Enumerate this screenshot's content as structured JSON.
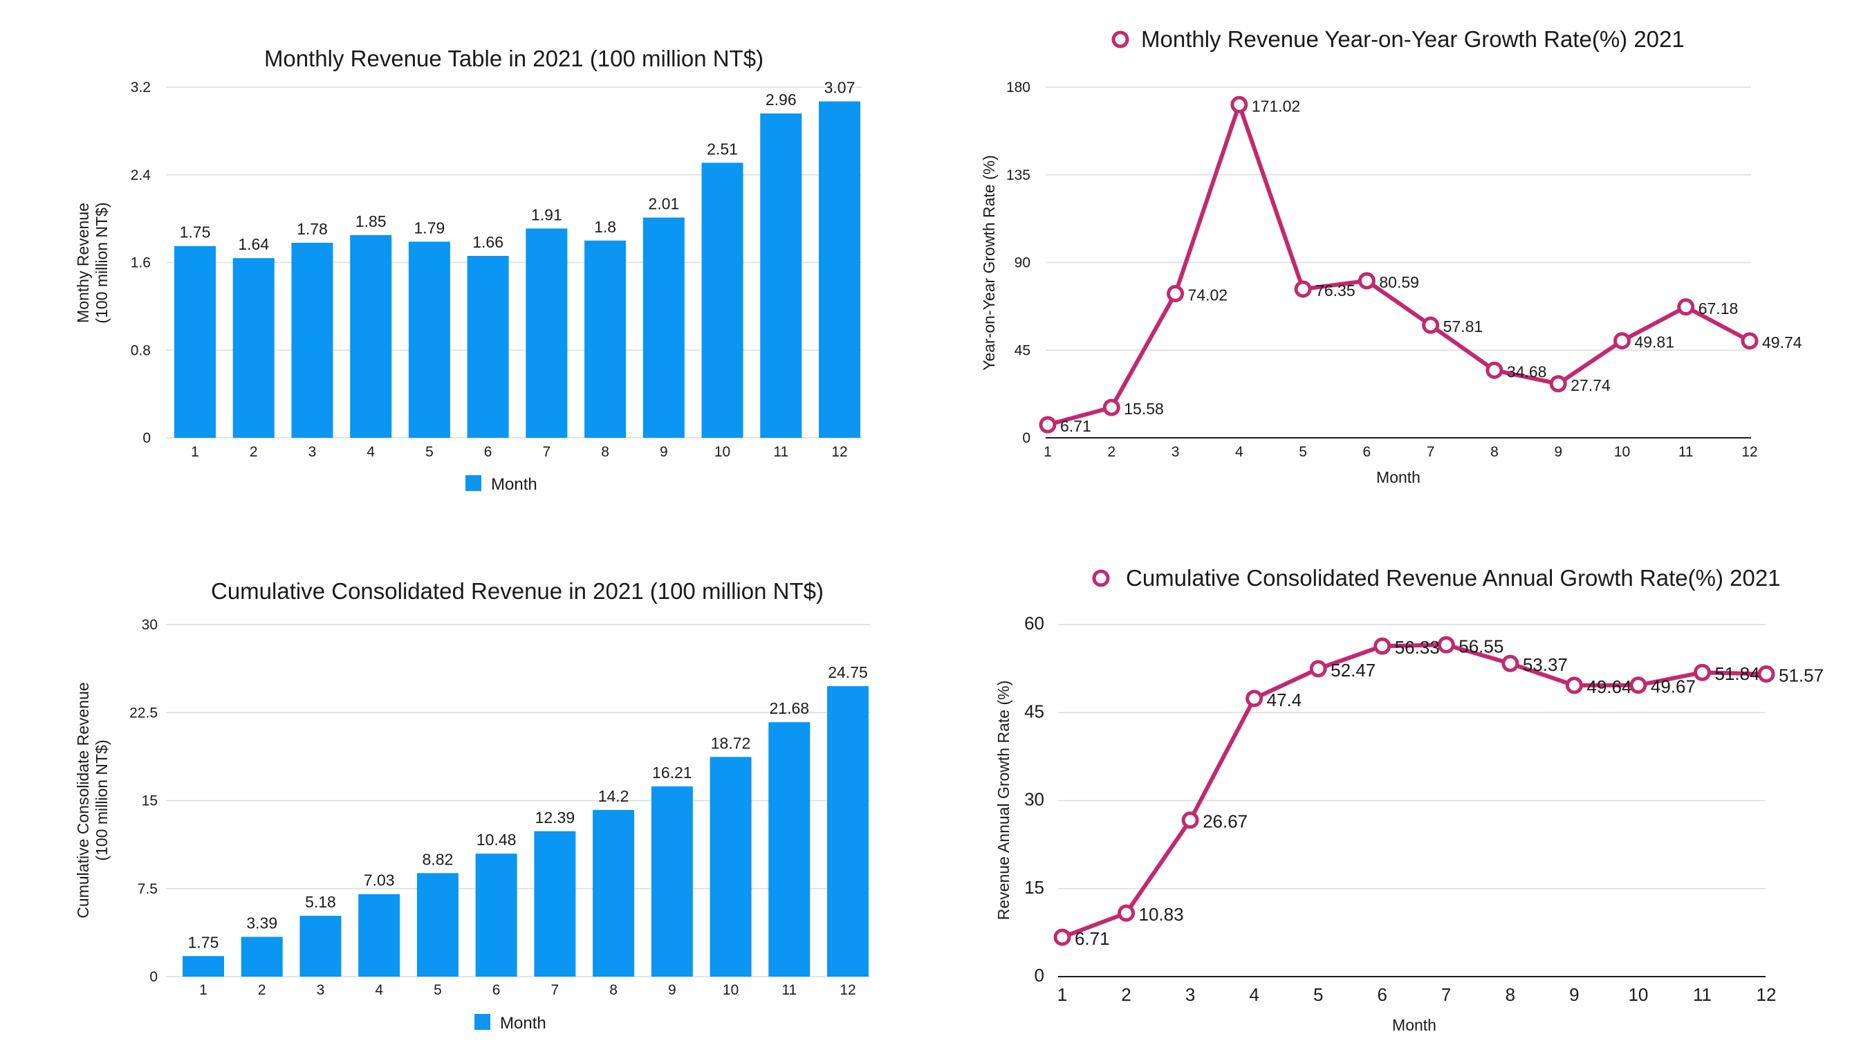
{
  "chart_data": [
    {
      "type": "bar",
      "title": "Monthly Revenue Table in 2021 (100 million NT$)",
      "ylabel_lines": [
        "Monthy Revenue",
        "(100 million NT$)"
      ],
      "xlabel": "",
      "categories": [
        "1",
        "2",
        "3",
        "4",
        "5",
        "6",
        "7",
        "8",
        "9",
        "10",
        "11",
        "12"
      ],
      "values": [
        1.75,
        1.64,
        1.78,
        1.85,
        1.79,
        1.66,
        1.91,
        1.8,
        2.01,
        2.51,
        2.96,
        3.07
      ],
      "value_labels": [
        "1.75",
        "1.64",
        "1.78",
        "1.85",
        "1.79",
        "1.66",
        "1.91",
        "1.8",
        "2.01",
        "2.51",
        "2.96",
        "3.07"
      ],
      "ylim": [
        0,
        3.2
      ],
      "yticks": [
        "0",
        "0.8",
        "1.6",
        "2.4",
        "3.2"
      ],
      "grid": true,
      "legend": "Month",
      "legend_position": "bottom",
      "color": "#0a96f2"
    },
    {
      "type": "line",
      "title": "Monthly Revenue Year-on-Year Growth Rate(%) 2021",
      "ylabel": "Year-on-Year Growth Rate (%)",
      "xlabel": "Month",
      "categories": [
        "1",
        "2",
        "3",
        "4",
        "5",
        "6",
        "7",
        "8",
        "9",
        "10",
        "11",
        "12"
      ],
      "values": [
        6.71,
        15.58,
        74.02,
        171.02,
        76.35,
        80.59,
        57.81,
        34.68,
        27.74,
        49.81,
        67.18,
        49.74
      ],
      "value_labels": [
        "6.71",
        "15.58",
        "74.02",
        "171.02",
        "76.35",
        "80.59",
        "57.81",
        "34.68",
        "27.74",
        "49.81",
        "67.18",
        "49.74"
      ],
      "ylim": [
        0,
        180
      ],
      "yticks": [
        "0",
        "45",
        "90",
        "135",
        "180"
      ],
      "grid": true,
      "legend_position": "top",
      "color": "#c2296e"
    },
    {
      "type": "bar",
      "title": "Cumulative Consolidated Revenue in 2021 (100 million NT$)",
      "ylabel_lines": [
        "Cumulative Consolidate Revenue",
        "(100 million NT$)"
      ],
      "xlabel": "",
      "categories": [
        "1",
        "2",
        "3",
        "4",
        "5",
        "6",
        "7",
        "8",
        "9",
        "10",
        "11",
        "12"
      ],
      "values": [
        1.75,
        3.39,
        5.18,
        7.03,
        8.82,
        10.48,
        12.39,
        14.2,
        16.21,
        18.72,
        21.68,
        24.75
      ],
      "value_labels": [
        "1.75",
        "3.39",
        "5.18",
        "7.03",
        "8.82",
        "10.48",
        "12.39",
        "14.2",
        "16.21",
        "18.72",
        "21.68",
        "24.75"
      ],
      "ylim": [
        0,
        30
      ],
      "yticks": [
        "0",
        "7.5",
        "15",
        "22.5",
        "30"
      ],
      "grid": true,
      "legend": "Month",
      "legend_position": "bottom",
      "color": "#0a96f2"
    },
    {
      "type": "line",
      "title": "Cumulative Consolidated Revenue Annual Growth Rate(%) 2021",
      "ylabel": "Revenue Annual Growth Rate (%)",
      "xlabel": "Month",
      "categories": [
        "1",
        "2",
        "3",
        "4",
        "5",
        "6",
        "7",
        "8",
        "9",
        "10",
        "11",
        "12"
      ],
      "values": [
        6.71,
        10.83,
        26.67,
        47.4,
        52.47,
        56.33,
        56.55,
        53.37,
        49.64,
        49.67,
        51.84,
        51.57
      ],
      "value_labels": [
        "6.71",
        "10.83",
        "26.67",
        "47.4",
        "52.47",
        "56.33",
        "56.55",
        "53.37",
        "49.64",
        "49.67",
        "51.84",
        "51.57"
      ],
      "ylim": [
        0,
        60
      ],
      "yticks": [
        "0",
        "15",
        "30",
        "45",
        "60"
      ],
      "grid": true,
      "legend_position": "top",
      "color": "#c2296e"
    }
  ]
}
